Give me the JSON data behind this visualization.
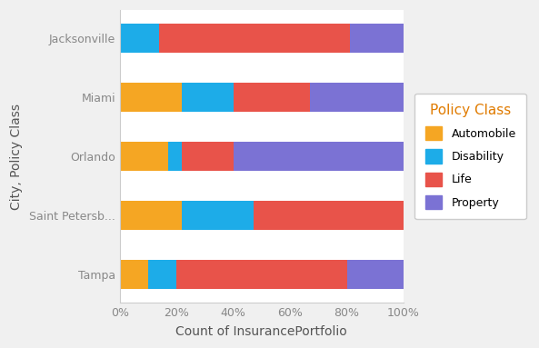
{
  "cities": [
    "Tampa",
    "Saint Petersb...",
    "Orlando",
    "Miami",
    "Jacksonville"
  ],
  "policy_classes": [
    "Automobile",
    "Disability",
    "Life",
    "Property"
  ],
  "values": {
    "Jacksonville": [
      0.0,
      0.14,
      0.67,
      0.19
    ],
    "Miami": [
      0.22,
      0.18,
      0.27,
      0.33
    ],
    "Orlando": [
      0.17,
      0.05,
      0.18,
      0.6
    ],
    "Saint Petersb...": [
      0.22,
      0.25,
      0.53,
      0.0
    ],
    "Tampa": [
      0.1,
      0.1,
      0.6,
      0.2
    ]
  },
  "colors": {
    "Automobile": "#F5A623",
    "Disability": "#1DACE8",
    "Life": "#E8534A",
    "Property": "#7B72D4"
  },
  "xlabel": "Count of InsurancePortfolio",
  "ylabel": "City, Policy Class",
  "legend_title": "Policy Class",
  "plot_bg_color": "#FFFFFF",
  "fig_bg_color": "#F0F0F0",
  "bar_height": 0.5,
  "xlim": [
    0,
    1.0
  ],
  "xtick_labels": [
    "0%",
    "20%",
    "40%",
    "60%",
    "80%",
    "100%"
  ],
  "xtick_values": [
    0.0,
    0.2,
    0.4,
    0.6,
    0.8,
    1.0
  ],
  "grid_color": "#FFFFFF",
  "tick_color": "#888888",
  "label_color": "#555555",
  "legend_title_color": "#E07B00"
}
